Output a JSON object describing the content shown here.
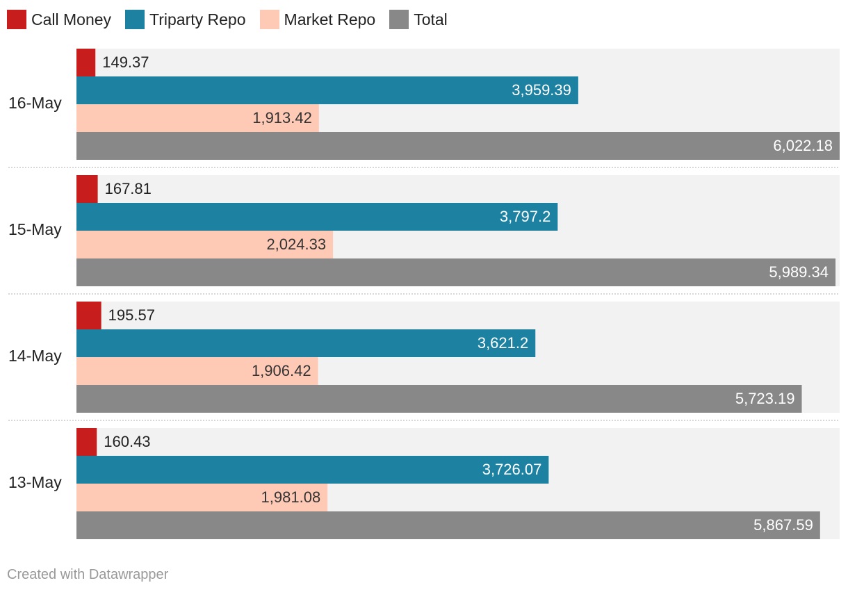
{
  "chart_data": {
    "type": "bar",
    "orientation": "horizontal",
    "categories": [
      "16-May",
      "15-May",
      "14-May",
      "13-May"
    ],
    "series": [
      {
        "name": "Call Money",
        "color": "#c71e1d",
        "values": [
          149.37,
          167.81,
          195.57,
          160.43
        ],
        "labels": [
          "149.37",
          "167.81",
          "195.57",
          "160.43"
        ]
      },
      {
        "name": "Triparty Repo",
        "color": "#1d81a2",
        "values": [
          3959.39,
          3797.2,
          3621.2,
          3726.07
        ],
        "labels": [
          "3,959.39",
          "3,797.2",
          "3,621.2",
          "3,726.07"
        ]
      },
      {
        "name": "Market Repo",
        "color": "#ffcab5",
        "values": [
          1913.42,
          2024.33,
          1906.42,
          1981.08
        ],
        "labels": [
          "1,913.42",
          "2,024.33",
          "1,906.42",
          "1,981.08"
        ]
      },
      {
        "name": "Total",
        "color": "#888888",
        "values": [
          6022.18,
          5989.34,
          5723.19,
          5867.59
        ],
        "labels": [
          "6,022.18",
          "5,989.34",
          "5,723.19",
          "5,867.59"
        ]
      }
    ],
    "xlim": [
      0,
      6022.18
    ],
    "grid": false,
    "legend_position": "top-left"
  },
  "footer": {
    "credit": "Created with Datawrapper"
  }
}
